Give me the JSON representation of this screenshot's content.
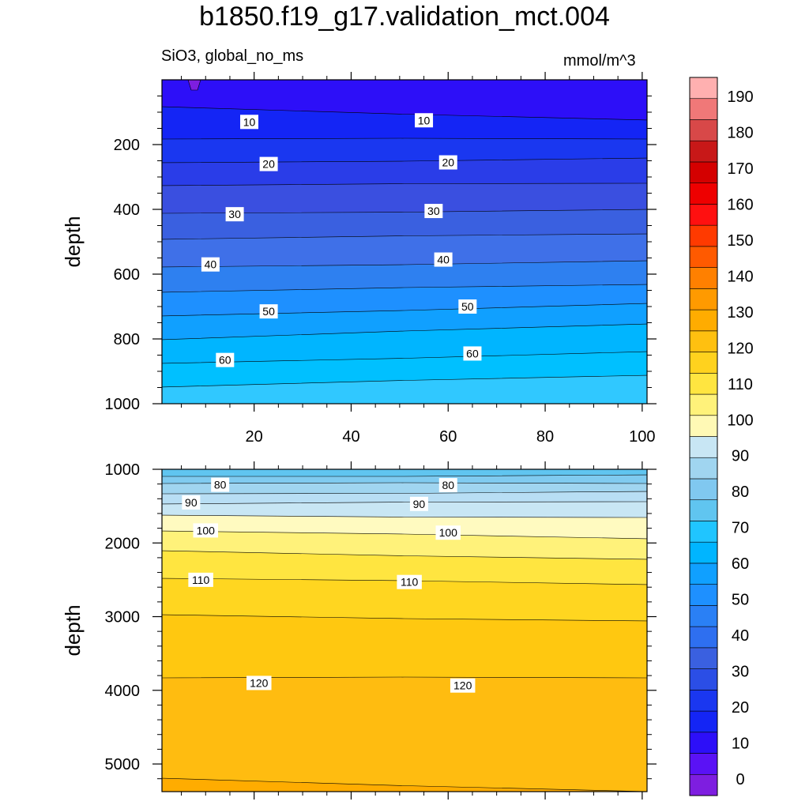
{
  "chart_data": [
    {
      "type": "contour",
      "title": "b1850.f19_g17.validation_mct.004",
      "left_label": "SiO3, global_no_ms",
      "right_label": "mmol/m^3",
      "panel": "upper",
      "xlabel": "",
      "ylabel": "depth",
      "xlim": [
        1,
        101
      ],
      "ylim": [
        1000,
        0
      ],
      "xticks": [
        "20",
        "40",
        "60",
        "80",
        "100"
      ],
      "yticks": [
        "200",
        "400",
        "600",
        "800",
        "1000"
      ],
      "contour_labels": [
        {
          "text": "10",
          "x": 19,
          "depth": 130
        },
        {
          "text": "10",
          "x": 55,
          "depth": 125
        },
        {
          "text": "20",
          "x": 23,
          "depth": 260
        },
        {
          "text": "20",
          "x": 60,
          "depth": 255
        },
        {
          "text": "30",
          "x": 16,
          "depth": 415
        },
        {
          "text": "30",
          "x": 57,
          "depth": 405
        },
        {
          "text": "40",
          "x": 11,
          "depth": 570
        },
        {
          "text": "40",
          "x": 59,
          "depth": 555
        },
        {
          "text": "50",
          "x": 23,
          "depth": 715
        },
        {
          "text": "50",
          "x": 64,
          "depth": 700
        },
        {
          "text": "60",
          "x": 14,
          "depth": 865
        },
        {
          "text": "60",
          "x": 65,
          "depth": 845
        }
      ]
    },
    {
      "type": "contour",
      "panel": "lower",
      "xlabel": "",
      "ylabel": "depth",
      "xlim": [
        1,
        101
      ],
      "ylim": [
        5375,
        1000
      ],
      "yticks": [
        "1000",
        "2000",
        "3000",
        "4000",
        "5000"
      ],
      "contour_labels": [
        {
          "text": "80",
          "x": 13,
          "depth": 1210
        },
        {
          "text": "80",
          "x": 60,
          "depth": 1215
        },
        {
          "text": "90",
          "x": 7,
          "depth": 1450
        },
        {
          "text": "90",
          "x": 54,
          "depth": 1470
        },
        {
          "text": "100",
          "x": 10,
          "depth": 1830
        },
        {
          "text": "100",
          "x": 60,
          "depth": 1860
        },
        {
          "text": "110",
          "x": 9,
          "depth": 2500
        },
        {
          "text": "110",
          "x": 52,
          "depth": 2530
        },
        {
          "text": "120",
          "x": 21,
          "depth": 3900
        },
        {
          "text": "120",
          "x": 63,
          "depth": 3935
        }
      ]
    }
  ],
  "colorbar": {
    "labels": [
      "0",
      "10",
      "20",
      "30",
      "40",
      "50",
      "60",
      "70",
      "80",
      "90",
      "100",
      "110",
      "120",
      "130",
      "140",
      "150",
      "160",
      "170",
      "180",
      "190"
    ],
    "colors": [
      "#7e1ee0",
      "#5a12f5",
      "#2d0ff8",
      "#1425f5",
      "#1a37f0",
      "#2b4ee6",
      "#3a60e0",
      "#2e6ff0",
      "#2a80f5",
      "#1e90ff",
      "#10a0ff",
      "#00b5ff",
      "#20c5ff",
      "#60c5f0",
      "#80c8f0",
      "#a0d5f0",
      "#c8e6f4",
      "#fff9b5",
      "#fff27a",
      "#ffe540",
      "#ffd21e",
      "#ffc010",
      "#ffac00",
      "#ff9a00",
      "#ff8000",
      "#ff5a00",
      "#ff3a00",
      "#ff1010",
      "#ee0000",
      "#d40000",
      "#c81818",
      "#d84848",
      "#f07878",
      "#ffb0b0"
    ]
  }
}
